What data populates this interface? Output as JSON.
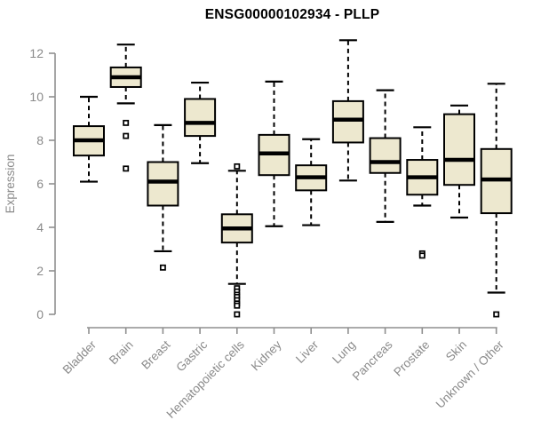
{
  "chart_data": {
    "type": "boxplot",
    "title": "ENSG00000102934 - PLLP",
    "ylabel": "Expression",
    "xlabel": "",
    "ylim": [
      0,
      12
    ],
    "yticks": [
      0,
      2,
      4,
      6,
      8,
      10,
      12
    ],
    "legend": "none",
    "grid": false,
    "categories": [
      "Bladder",
      "Brain",
      "Breast",
      "Gastric",
      "Hematopoietic cells",
      "Kidney",
      "Liver",
      "Lung",
      "Pancreas",
      "Prostate",
      "Skin",
      "Unknown / Other"
    ],
    "series": [
      {
        "name": "Bladder",
        "whisker_low": 6.1,
        "q1": 7.3,
        "median": 8.0,
        "q3": 8.65,
        "whisker_high": 10.0,
        "outliers": []
      },
      {
        "name": "Brain",
        "whisker_low": 9.7,
        "q1": 10.45,
        "median": 10.9,
        "q3": 11.35,
        "whisker_high": 12.4,
        "outliers": [
          8.8,
          8.2,
          6.7
        ]
      },
      {
        "name": "Breast",
        "whisker_low": 2.9,
        "q1": 5.0,
        "median": 6.1,
        "q3": 7.0,
        "whisker_high": 8.7,
        "outliers": [
          2.15
        ]
      },
      {
        "name": "Gastric",
        "whisker_low": 6.95,
        "q1": 8.2,
        "median": 8.8,
        "q3": 9.9,
        "whisker_high": 10.65,
        "outliers": []
      },
      {
        "name": "Hematopoietic cells",
        "whisker_low": 1.4,
        "q1": 3.3,
        "median": 3.95,
        "q3": 4.6,
        "whisker_high": 6.6,
        "outliers": [
          6.8,
          1.2,
          1.05,
          0.9,
          0.8,
          0.65,
          0.5,
          0.4,
          0.0
        ]
      },
      {
        "name": "Kidney",
        "whisker_low": 4.05,
        "q1": 6.4,
        "median": 7.4,
        "q3": 8.25,
        "whisker_high": 10.7,
        "outliers": []
      },
      {
        "name": "Liver",
        "whisker_low": 4.1,
        "q1": 5.7,
        "median": 6.3,
        "q3": 6.85,
        "whisker_high": 8.05,
        "outliers": []
      },
      {
        "name": "Lung",
        "whisker_low": 6.15,
        "q1": 7.9,
        "median": 8.95,
        "q3": 9.8,
        "whisker_high": 12.6,
        "outliers": []
      },
      {
        "name": "Pancreas",
        "whisker_low": 4.25,
        "q1": 6.5,
        "median": 7.0,
        "q3": 8.1,
        "whisker_high": 10.3,
        "outliers": []
      },
      {
        "name": "Prostate",
        "whisker_low": 5.0,
        "q1": 5.5,
        "median": 6.3,
        "q3": 7.1,
        "whisker_high": 8.6,
        "outliers": [
          2.8,
          2.7
        ]
      },
      {
        "name": "Skin",
        "whisker_low": 4.45,
        "q1": 5.95,
        "median": 7.1,
        "q3": 9.2,
        "whisker_high": 9.6,
        "outliers": []
      },
      {
        "name": "Unknown / Other",
        "whisker_low": 1.0,
        "q1": 4.65,
        "median": 6.2,
        "q3": 7.6,
        "whisker_high": 10.6,
        "outliers": [
          0.0
        ]
      }
    ],
    "colors": {
      "box_fill": "#EDE8CF",
      "box_border": "#000000",
      "median": "#000000",
      "axis": "#8F8F8F",
      "tick_label": "#8A8A8A",
      "title": "#000000",
      "background": "#FFFFFF"
    }
  }
}
